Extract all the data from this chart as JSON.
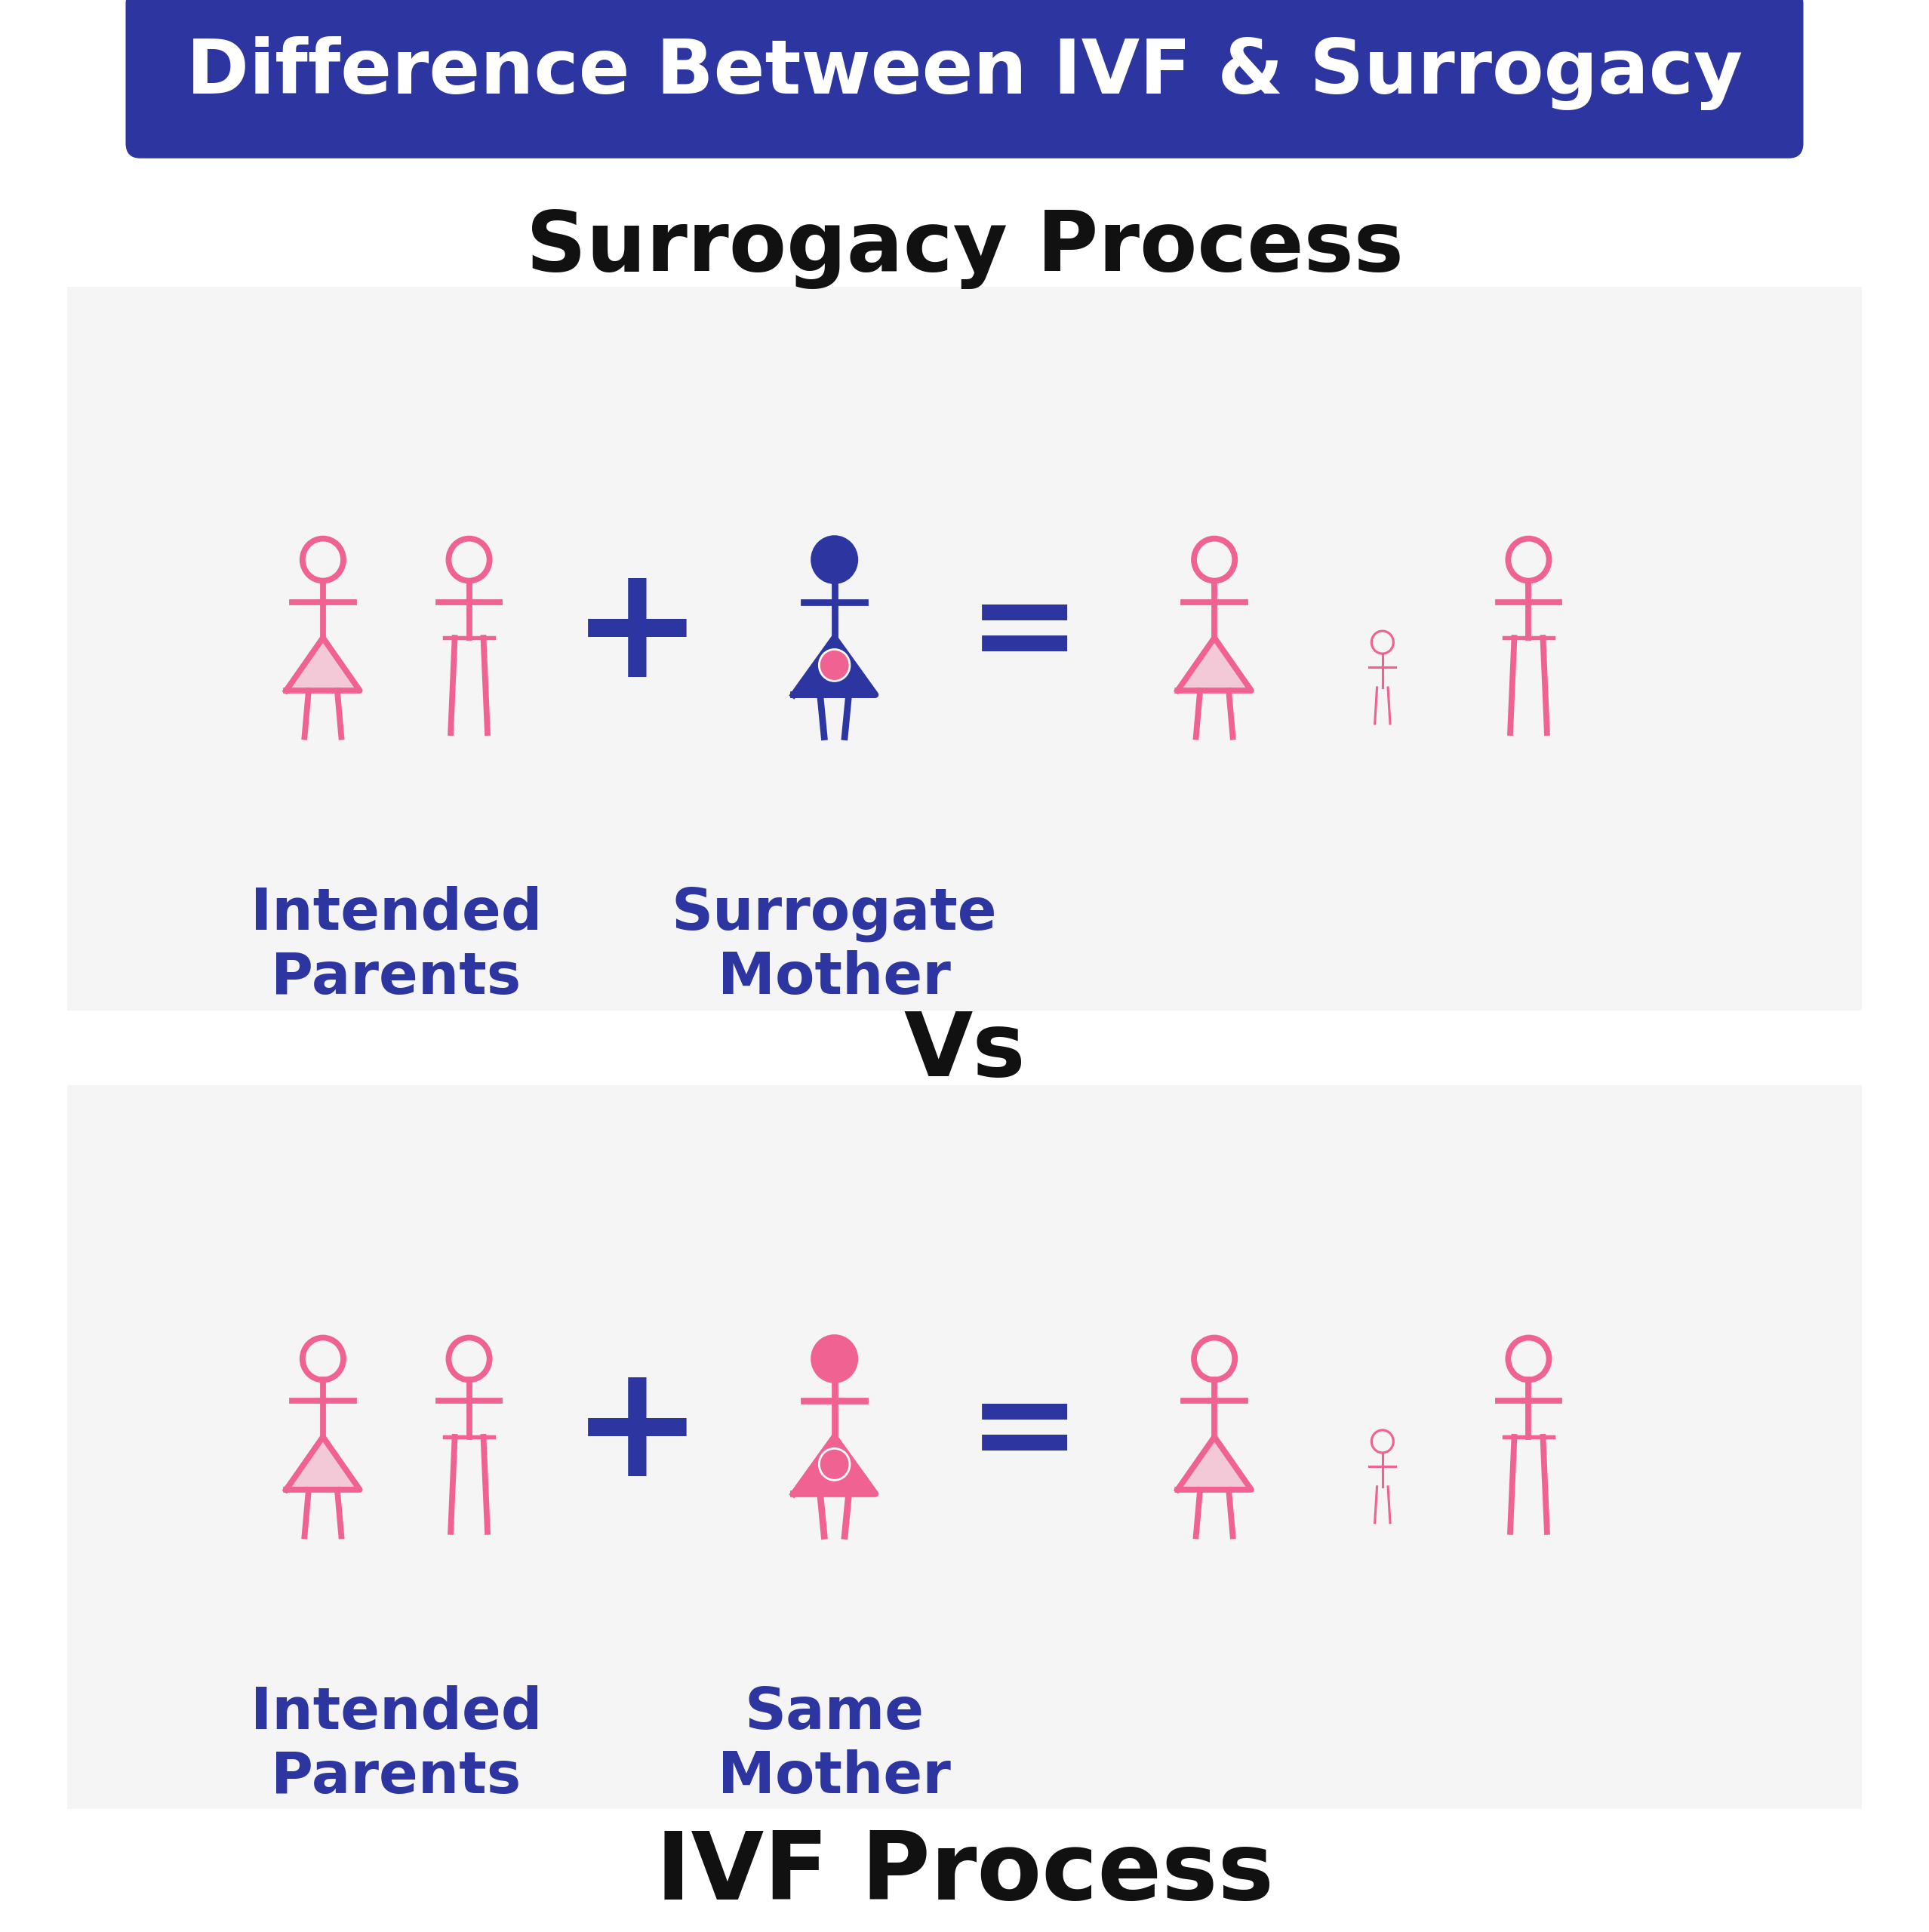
{
  "title": "Difference Between IVF & Surrogacy",
  "title_bg": "#2d35a0",
  "title_color": "#ffffff",
  "surrogacy_label": "Surrogacy Process",
  "ivf_label": "IVF Process",
  "vs_label": "Vs",
  "pink": "#f06292",
  "dark_pink": "#e91e8c",
  "navy": "#2d35a0",
  "panel_bg": "#f5f5f5",
  "white": "#ffffff",
  "black": "#111111",
  "intended_parents_label": "Intended\nParents",
  "surrogate_mother_label": "Surrogate\nMother",
  "same_mother_label": "Same\nMother"
}
